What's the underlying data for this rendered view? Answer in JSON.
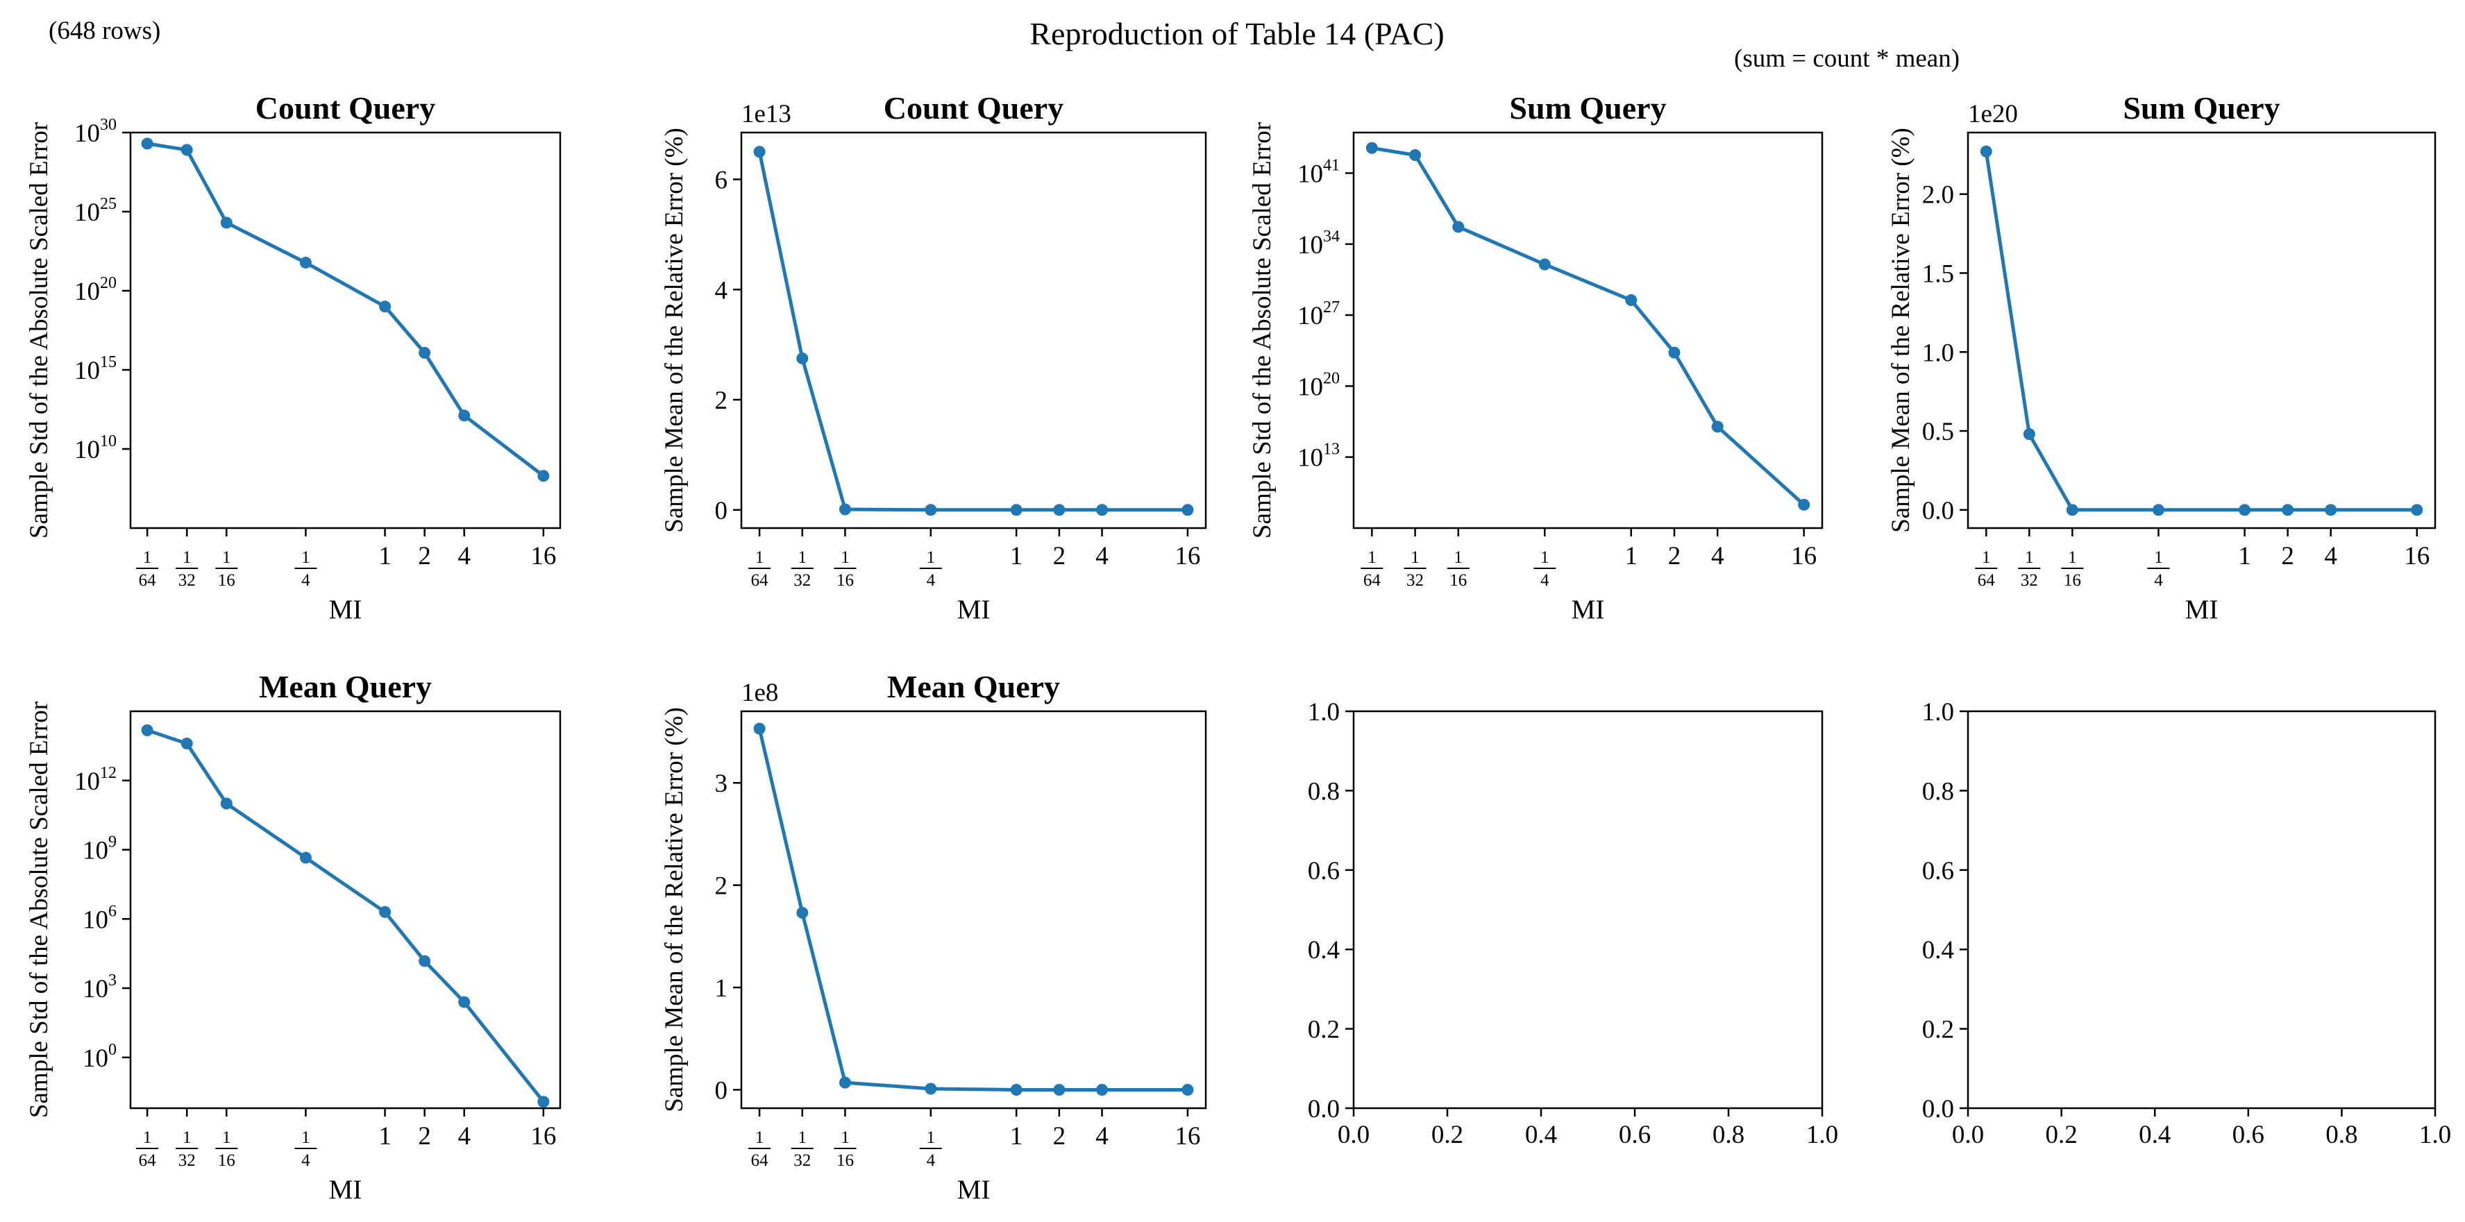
{
  "figure": {
    "title": "Reproduction of Table 14 (PAC)",
    "row_note": "(648 rows)",
    "sum_note": "(sum = count * mean)"
  },
  "x_tick_labels": [
    {
      "num": "1",
      "den": "64"
    },
    {
      "num": "1",
      "den": "32"
    },
    {
      "num": "1",
      "den": "16"
    },
    {
      "num": "1",
      "den": "4"
    },
    {
      "num": "1",
      "den": ""
    },
    {
      "num": "2",
      "den": ""
    },
    {
      "num": "4",
      "den": ""
    },
    {
      "num": "16",
      "den": ""
    }
  ],
  "colors": {
    "series": "#1f77b4",
    "axes": "#000000"
  },
  "chart_data": [
    {
      "type": "line",
      "title": "Count Query",
      "xlabel": "MI",
      "ylabel": "Sample Std of the Absolute Scaled Error",
      "yscale": "log",
      "ylim": [
        100000.0,
        1e+30
      ],
      "yticks": [
        {
          "base": "10",
          "exp": "30",
          "value": 1e+30
        },
        {
          "base": "10",
          "exp": "25",
          "value": 1e+25
        },
        {
          "base": "10",
          "exp": "20",
          "value": 1e+20
        },
        {
          "base": "10",
          "exp": "15",
          "value": 1000000000000000.0
        },
        {
          "base": "10",
          "exp": "10",
          "value": 10000000000.0
        }
      ],
      "x": [
        0.015625,
        0.03125,
        0.0625,
        0.25,
        1,
        2,
        4,
        16
      ],
      "values": [
        2e+29,
        8e+28,
        2e+24,
        6e+21,
        1e+19,
        1.2e+16,
        1300000000000.0,
        200000000.0
      ]
    },
    {
      "type": "line",
      "title": "Count Query",
      "xlabel": "MI",
      "ylabel": "Sample Mean of the Relative Error (%)",
      "yscale": "linear",
      "exponent_label": "1e13",
      "ylim": [
        -0.33,
        6.85
      ],
      "yticks": [
        {
          "label": "0",
          "value": 0
        },
        {
          "label": "2",
          "value": 2
        },
        {
          "label": "4",
          "value": 4
        },
        {
          "label": "6",
          "value": 6
        }
      ],
      "x": [
        0.015625,
        0.03125,
        0.0625,
        0.25,
        1,
        2,
        4,
        16
      ],
      "values": [
        6.5,
        2.75,
        0.01,
        0.0,
        0.0,
        0.0,
        0.0,
        0.0
      ]
    },
    {
      "type": "line",
      "title": "Sum Query",
      "xlabel": "MI",
      "ylabel": "Sample Std of the Absolute Scaled Error",
      "yscale": "log",
      "ylim": [
        1000000.0,
        1e+45
      ],
      "yticks": [
        {
          "base": "10",
          "exp": "41",
          "value": 1e+41
        },
        {
          "base": "10",
          "exp": "34",
          "value": 1e+34
        },
        {
          "base": "10",
          "exp": "27",
          "value": 1e+27
        },
        {
          "base": "10",
          "exp": "20",
          "value": 1e+20
        },
        {
          "base": "10",
          "exp": "13",
          "value": 10000000000000.0
        }
      ],
      "x": [
        0.015625,
        0.03125,
        0.0625,
        0.25,
        1,
        2,
        4,
        16
      ],
      "values": [
        3e+43,
        6e+42,
        5e+35,
        1e+32,
        3e+28,
        2e+23,
        1e+16,
        200000000.0
      ]
    },
    {
      "type": "line",
      "title": "Sum Query",
      "xlabel": "MI",
      "ylabel": "Sample Mean of the Relative Error (%)",
      "yscale": "linear",
      "exponent_label": "1e20",
      "ylim": [
        -0.115,
        2.39
      ],
      "yticks": [
        {
          "label": "0.0",
          "value": 0
        },
        {
          "label": "0.5",
          "value": 0.5
        },
        {
          "label": "1.0",
          "value": 1.0
        },
        {
          "label": "1.5",
          "value": 1.5
        },
        {
          "label": "2.0",
          "value": 2.0
        }
      ],
      "x": [
        0.015625,
        0.03125,
        0.0625,
        0.25,
        1,
        2,
        4,
        16
      ],
      "values": [
        2.27,
        0.48,
        0.0,
        0.0,
        0.0,
        0.0,
        0.0,
        0.0
      ]
    },
    {
      "type": "line",
      "title": "Mean Query",
      "xlabel": "MI",
      "ylabel": "Sample Std of the Absolute Scaled Error",
      "yscale": "log",
      "ylim": [
        0.0063,
        1000000000000000.0
      ],
      "yticks": [
        {
          "base": "10",
          "exp": "12",
          "value": 1000000000000.0
        },
        {
          "base": "10",
          "exp": "9",
          "value": 1000000000.0
        },
        {
          "base": "10",
          "exp": "6",
          "value": 1000000.0
        },
        {
          "base": "10",
          "exp": "3",
          "value": 1000.0
        },
        {
          "base": "10",
          "exp": "0",
          "value": 1
        }
      ],
      "x": [
        0.015625,
        0.03125,
        0.0625,
        0.25,
        1,
        2,
        4,
        16
      ],
      "values": [
        150000000000000.0,
        40000000000000.0,
        100000000000.0,
        450000000.0,
        2000000.0,
        15000.0,
        250,
        0.012
      ]
    },
    {
      "type": "line",
      "title": "Mean Query",
      "xlabel": "MI",
      "ylabel": "Sample Mean of the Relative Error (%)",
      "yscale": "linear",
      "exponent_label": "1e8",
      "ylim": [
        -0.18,
        3.7
      ],
      "yticks": [
        {
          "label": "0",
          "value": 0
        },
        {
          "label": "1",
          "value": 1
        },
        {
          "label": "2",
          "value": 2
        },
        {
          "label": "3",
          "value": 3
        }
      ],
      "x": [
        0.015625,
        0.03125,
        0.0625,
        0.25,
        1,
        2,
        4,
        16
      ],
      "values": [
        3.53,
        1.73,
        0.07,
        0.01,
        0.0,
        0.0,
        0.0,
        0.0
      ]
    },
    {
      "type": "empty",
      "xlim": [
        0,
        1
      ],
      "ylim": [
        0,
        1
      ],
      "xticks": [
        "0.0",
        "0.2",
        "0.4",
        "0.6",
        "0.8",
        "1.0"
      ],
      "yticks": [
        "0.0",
        "0.2",
        "0.4",
        "0.6",
        "0.8",
        "1.0"
      ]
    },
    {
      "type": "empty",
      "xlim": [
        0,
        1
      ],
      "ylim": [
        0,
        1
      ],
      "xticks": [
        "0.0",
        "0.2",
        "0.4",
        "0.6",
        "0.8",
        "1.0"
      ],
      "yticks": [
        "0.0",
        "0.2",
        "0.4",
        "0.6",
        "0.8",
        "1.0"
      ]
    }
  ]
}
